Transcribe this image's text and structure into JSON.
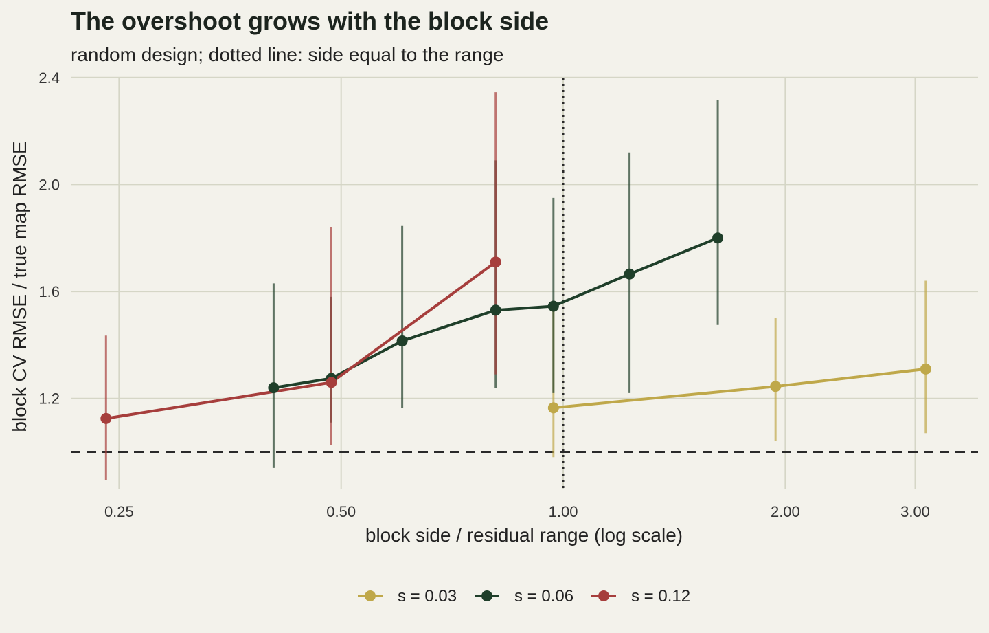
{
  "chart_data": {
    "type": "line",
    "title": "The overshoot grows with the block side",
    "subtitle": "random design; dotted line: side equal to the range",
    "xlabel": "block side / residual range (log scale)",
    "ylabel": "block CV RMSE / true map RMSE",
    "x_scale": "log",
    "xlim": [
      0.215,
      3.65
    ],
    "ylim": [
      0.86,
      2.42
    ],
    "x_ticks": [
      0.25,
      0.5,
      1.0,
      2.0,
      3.0
    ],
    "x_tick_labels": [
      "0.25",
      "0.50",
      "1.00",
      "2.00",
      "3.00"
    ],
    "y_ticks": [
      1.2,
      1.6,
      2.0,
      2.4
    ],
    "y_tick_labels": [
      "1.2",
      "1.6",
      "2.0",
      "2.4"
    ],
    "grid": true,
    "reference_lines": [
      {
        "orientation": "horizontal",
        "value": 1.0,
        "style": "dashed"
      },
      {
        "orientation": "vertical",
        "value": 1.0,
        "style": "dotted"
      }
    ],
    "legend_position": "bottom",
    "series": [
      {
        "name": "s = 0.03",
        "color": "#bfa84a",
        "points": [
          {
            "x": 0.97,
            "y": 1.165,
            "lo": 0.98,
            "hi": 1.54
          },
          {
            "x": 1.94,
            "y": 1.245,
            "lo": 1.04,
            "hi": 1.5
          },
          {
            "x": 3.1,
            "y": 1.31,
            "lo": 1.07,
            "hi": 1.64
          }
        ]
      },
      {
        "name": "s = 0.06",
        "color": "#1f3f2a",
        "points": [
          {
            "x": 0.405,
            "y": 1.24,
            "lo": 0.94,
            "hi": 1.63
          },
          {
            "x": 0.485,
            "y": 1.275,
            "lo": 1.11,
            "hi": 1.58
          },
          {
            "x": 0.605,
            "y": 1.415,
            "lo": 1.165,
            "hi": 1.845
          },
          {
            "x": 0.81,
            "y": 1.53,
            "lo": 1.24,
            "hi": 2.09
          },
          {
            "x": 0.97,
            "y": 1.545,
            "lo": 1.22,
            "hi": 1.95
          },
          {
            "x": 1.23,
            "y": 1.665,
            "lo": 1.22,
            "hi": 2.12
          },
          {
            "x": 1.62,
            "y": 1.8,
            "lo": 1.475,
            "hi": 2.315
          }
        ]
      },
      {
        "name": "s = 0.12",
        "color": "#a63e3c",
        "points": [
          {
            "x": 0.24,
            "y": 1.125,
            "lo": 0.895,
            "hi": 1.435
          },
          {
            "x": 0.485,
            "y": 1.26,
            "lo": 1.025,
            "hi": 1.84
          },
          {
            "x": 0.81,
            "y": 1.71,
            "lo": 1.29,
            "hi": 2.345
          }
        ]
      }
    ]
  }
}
